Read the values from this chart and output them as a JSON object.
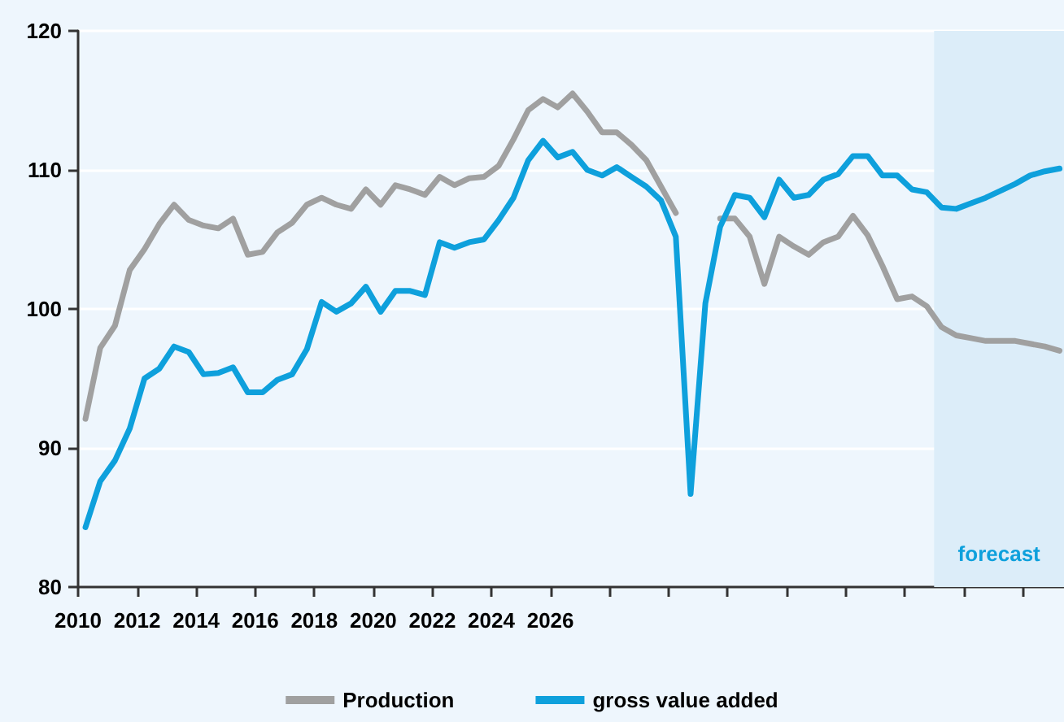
{
  "chart_data": {
    "type": "line",
    "xlim": [
      2010,
      2043.4
    ],
    "ylim": [
      80,
      120
    ],
    "x": [
      2010.25,
      2010.75,
      2011.25,
      2011.75,
      2012.25,
      2012.75,
      2013.25,
      2013.75,
      2014.25,
      2014.75,
      2015.25,
      2015.75,
      2016.25,
      2016.75,
      2017.25,
      2017.75,
      2018.25,
      2018.75,
      2019.25,
      2019.75,
      2020.25,
      2020.75,
      2021.25,
      2021.75,
      2022.25,
      2022.75,
      2023.25,
      2023.75,
      2024.25,
      2024.75,
      2025.25,
      2025.75,
      2026.25,
      2026.75,
      2027.25,
      2027.75,
      2028.25,
      2028.75,
      2029.25,
      2029.75,
      2030.25,
      2030.75,
      2031.25,
      2031.75,
      2032.25,
      2032.75,
      2033.25,
      2033.75,
      2034.25,
      2034.75,
      2035.25,
      2035.75,
      2036.25,
      2036.75,
      2037.25,
      2037.75,
      2038.25,
      2038.75,
      2039.25,
      2039.75,
      2040.25,
      2040.75,
      2041.25,
      2041.75,
      2042.25,
      2042.75,
      2043.25
    ],
    "series": [
      {
        "name": "Production",
        "color": "#a0a0a0",
        "values": [
          92.1,
          97.2,
          98.8,
          102.8,
          104.3,
          106.1,
          107.5,
          106.4,
          106.0,
          105.8,
          106.5,
          103.9,
          104.1,
          105.5,
          106.2,
          107.5,
          108.0,
          107.5,
          107.2,
          108.6,
          107.5,
          108.9,
          108.6,
          108.2,
          109.5,
          108.9,
          109.4,
          109.5,
          110.3,
          112.2,
          114.3,
          115.1,
          114.5,
          115.5,
          114.2,
          112.7,
          112.7,
          111.8,
          110.7,
          108.8,
          106.9,
          null,
          null,
          106.5,
          106.5,
          105.2,
          101.8,
          105.2,
          104.5,
          103.9,
          104.8,
          105.2,
          106.7,
          105.3,
          103.1,
          100.7,
          100.9,
          100.2,
          98.7,
          98.1,
          97.9,
          97.7,
          97.7,
          97.7,
          97.5,
          97.3,
          97.0
        ]
      },
      {
        "name": "gross value added",
        "color": "#0ea0dc",
        "values": [
          84.3,
          87.6,
          89.1,
          91.4,
          95.0,
          95.7,
          97.3,
          96.9,
          95.3,
          95.4,
          95.8,
          94.0,
          94.0,
          94.9,
          95.3,
          97.1,
          100.5,
          99.8,
          100.4,
          101.6,
          99.8,
          101.3,
          101.3,
          101.0,
          104.8,
          104.4,
          104.8,
          105.0,
          106.4,
          108.0,
          110.7,
          112.1,
          110.9,
          111.3,
          110.0,
          109.6,
          110.2,
          109.5,
          108.8,
          107.8,
          105.2,
          86.7,
          100.4,
          105.9,
          108.2,
          108.0,
          106.6,
          109.3,
          108.0,
          108.2,
          109.3,
          109.7,
          111.0,
          111.0,
          109.6,
          109.6,
          108.6,
          108.4,
          107.3,
          107.2,
          107.6,
          108.0,
          108.5,
          109.0,
          109.6,
          109.9,
          110.1
        ]
      }
    ],
    "xticks": [
      2010,
      2012,
      2014,
      2016,
      2018,
      2020,
      2022,
      2024,
      2026,
      {
        "value": 2028,
        "label": null
      },
      {
        "value": 2030,
        "label": null
      },
      {
        "value": 2032,
        "label": null
      },
      {
        "value": 2034,
        "label": null
      },
      {
        "value": 2036,
        "label": null
      },
      {
        "value": 2038,
        "label": null
      },
      {
        "value": 2040,
        "label": null
      },
      {
        "value": 2042,
        "label": null
      }
    ],
    "yticks": [
      80,
      90,
      100,
      110,
      120
    ],
    "bands": [
      {
        "axis": "x",
        "from": 2039,
        "to": 2043.4,
        "label": "forecast",
        "color": "#dcedf9"
      }
    ],
    "grid": "y",
    "legend": "bottom",
    "marker": "none",
    "line_style": "solid"
  }
}
